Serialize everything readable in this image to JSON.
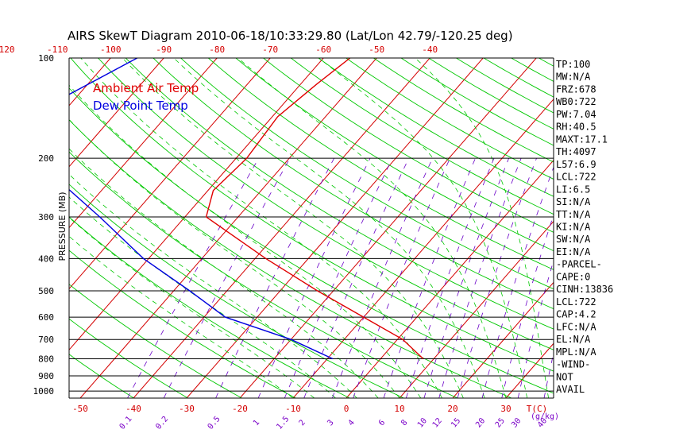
{
  "chart_data": {
    "type": "line",
    "title": "AIRS SkewT Diagram 2010-06-18/10:33:29.80 (Lat/Lon 42.79/-120.25 deg)",
    "ylabel": "PRESSURE (MB)",
    "y_scale": "log",
    "pressure_levels": [
      100,
      200,
      300,
      400,
      500,
      600,
      700,
      800,
      900,
      1000
    ],
    "top_temp_ticks": [
      -120,
      -110,
      -100,
      -90,
      -80,
      -70,
      -60,
      -50,
      -40
    ],
    "bottom_temp_ticks": [
      -50,
      -40,
      -30,
      -20,
      -10,
      0,
      10,
      20,
      30
    ],
    "bottom_temp_unit": "T(C)",
    "mixing_ratio_ticks": [
      "0.1",
      "0.2",
      "0.5",
      "1",
      "1.5",
      "2",
      "3",
      "4",
      "6",
      "8",
      "10",
      "12",
      "15",
      "20",
      "25",
      "30",
      "40"
    ],
    "mixing_ratio_unit": "(g/kg)",
    "legend": [
      {
        "name": "Ambient Air Temp",
        "color": "#e00000"
      },
      {
        "name": "Dew Point Temp",
        "color": "#0000e0"
      }
    ],
    "series": [
      {
        "name": "Ambient Air Temp",
        "pressure": [
          100,
          120,
          150,
          200,
          250,
          300,
          400,
          500,
          600,
          700,
          800
        ],
        "temperature": [
          -55,
          -57,
          -59,
          -58,
          -59,
          -56,
          -38,
          -23,
          -10,
          1,
          8
        ]
      },
      {
        "name": "Dew Point Temp",
        "pressure": [
          100,
          150,
          200,
          300,
          400,
          500,
          600,
          700,
          800
        ],
        "temperature": [
          -95,
          -106,
          -98,
          -76,
          -61,
          -47,
          -36,
          -20,
          -9
        ]
      }
    ],
    "stats": [
      "TP:100",
      "MW:N/A",
      "FRZ:678",
      "WB0:722",
      "PW:7.04",
      "RH:40.5",
      "MAXT:17.1",
      "TH:4097",
      "L57:6.9",
      "LCL:722",
      "LI:6.5",
      "SI:N/A",
      "TT:N/A",
      "KI:N/A",
      "SW:N/A",
      "EI:N/A",
      "-PARCEL-",
      "CAPE:0",
      "CINH:13836",
      "LCL:722",
      "CAP:4.2",
      "LFC:N/A",
      "EL:N/A",
      "MPL:N/A",
      "-WIND-",
      "NOT",
      "AVAIL"
    ],
    "colors": {
      "isobar": "#000000",
      "isotherm": "#d40000",
      "dry_adiabat": "#00c800",
      "moist_adiabat": "#00c800",
      "mixing_ratio": "#6a00c8",
      "temp_ticks": "#d40000",
      "mixing_ratio_labels": "#7a00c8"
    }
  }
}
